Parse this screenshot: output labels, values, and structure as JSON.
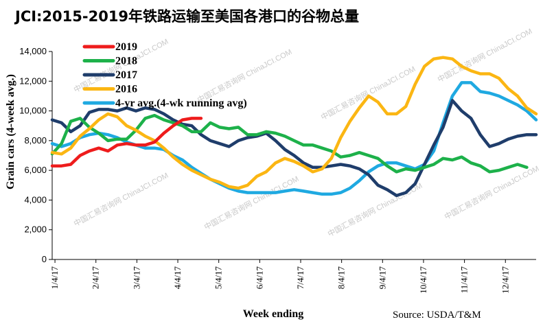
{
  "chart_data": {
    "type": "line",
    "title": "JCI:2015-2019年铁路运输至美国各港口的谷物总量",
    "ylabel": "Grain cars (4-week avg.)",
    "xlabel": "Week ending",
    "source": "Source: USDA/T&M",
    "watermark": "中国汇易咨询网 ChinaJCI.COM",
    "ylim": [
      0,
      14000
    ],
    "yticks": [
      0,
      2000,
      4000,
      6000,
      8000,
      10000,
      12000,
      14000
    ],
    "ytick_labels": [
      "0",
      "2,000",
      "4,000",
      "6,000",
      "8,000",
      "10,000",
      "12,000",
      "14,000"
    ],
    "x_domain": [
      0,
      52
    ],
    "xticks": [
      {
        "pos": 0.3,
        "label": "1/4/17"
      },
      {
        "pos": 4.7,
        "label": "2/4/17"
      },
      {
        "pos": 9.1,
        "label": "3/4/17"
      },
      {
        "pos": 13.5,
        "label": "4/4/17"
      },
      {
        "pos": 17.9,
        "label": "5/4/17"
      },
      {
        "pos": 22.3,
        "label": "6/4/17"
      },
      {
        "pos": 26.7,
        "label": "7/4/17"
      },
      {
        "pos": 31.1,
        "label": "8/4/17"
      },
      {
        "pos": 35.5,
        "label": "9/4/17"
      },
      {
        "pos": 39.9,
        "label": "10/4/17"
      },
      {
        "pos": 44.3,
        "label": "11/4/17"
      },
      {
        "pos": 48.7,
        "label": "12/4/17"
      }
    ],
    "series": [
      {
        "name": "2019",
        "color": "#ee1c1c",
        "x": [
          0,
          1,
          2,
          3,
          4,
          5,
          6,
          7,
          8,
          9,
          10,
          11,
          12,
          13,
          14,
          15,
          16
        ],
        "values": [
          6300,
          6300,
          6400,
          7000,
          7300,
          7500,
          7300,
          7700,
          7800,
          7700,
          7700,
          7900,
          8500,
          9000,
          9400,
          9500,
          9500
        ]
      },
      {
        "name": "2018",
        "color": "#1db14a",
        "x": [
          0,
          1,
          2,
          3,
          4,
          5,
          6,
          7,
          8,
          9,
          10,
          11,
          12,
          13,
          14,
          15,
          16,
          17,
          18,
          19,
          20,
          21,
          22,
          23,
          24,
          25,
          26,
          27,
          28,
          29,
          30,
          31,
          32,
          33,
          34,
          35,
          36,
          37,
          38,
          39,
          40,
          41,
          42,
          43,
          44,
          45,
          46,
          47,
          48,
          49,
          50,
          51
        ],
        "values": [
          7100,
          7800,
          9300,
          9500,
          8900,
          8500,
          8000,
          8100,
          8100,
          8700,
          9500,
          9700,
          9400,
          9200,
          9000,
          8600,
          8600,
          9200,
          8900,
          8800,
          8900,
          8400,
          8400,
          8600,
          8500,
          8300,
          8000,
          7700,
          7700,
          7500,
          7300,
          6900,
          7000,
          7200,
          7000,
          6800,
          6300,
          5900,
          6100,
          6000,
          6200,
          6400,
          6800,
          6700,
          6900,
          6500,
          6300,
          5900,
          6000,
          6200,
          6400,
          6200
        ]
      },
      {
        "name": "2017",
        "color": "#1f3d6b",
        "x": [
          0,
          1,
          2,
          3,
          4,
          5,
          6,
          7,
          8,
          9,
          10,
          11,
          12,
          13,
          14,
          15,
          16,
          17,
          18,
          19,
          20,
          21,
          22,
          23,
          24,
          25,
          26,
          27,
          28,
          29,
          30,
          31,
          32,
          33,
          34,
          35,
          36,
          37,
          38,
          39,
          40,
          41,
          42,
          43,
          44,
          45,
          46,
          47,
          48,
          49,
          50,
          51,
          52
        ],
        "values": [
          9400,
          9200,
          8600,
          9000,
          9900,
          10100,
          10100,
          10000,
          10200,
          10000,
          10200,
          10100,
          9800,
          9400,
          9100,
          9000,
          8400,
          8000,
          7800,
          7600,
          8000,
          8200,
          8300,
          8500,
          8000,
          7400,
          7000,
          6500,
          6200,
          6200,
          6300,
          6400,
          6300,
          6100,
          5700,
          5000,
          4700,
          4300,
          4500,
          5100,
          6400,
          7700,
          8900,
          10700,
          10000,
          9500,
          8400,
          7600,
          7800,
          8100,
          8300,
          8400,
          8400
        ]
      },
      {
        "name": "2016",
        "color": "#fbb613",
        "x": [
          0,
          1,
          2,
          3,
          4,
          5,
          6,
          7,
          8,
          9,
          10,
          11,
          12,
          13,
          14,
          15,
          16,
          17,
          18,
          19,
          20,
          21,
          22,
          23,
          24,
          25,
          26,
          27,
          28,
          29,
          30,
          31,
          32,
          33,
          34,
          35,
          36,
          37,
          38,
          39,
          40,
          41,
          42,
          43,
          44,
          45,
          46,
          47,
          48,
          49,
          50,
          51,
          52
        ],
        "values": [
          7200,
          7100,
          7500,
          8300,
          8800,
          9400,
          9800,
          9600,
          9000,
          8700,
          8300,
          8000,
          7500,
          6900,
          6400,
          6000,
          5700,
          5400,
          5200,
          4900,
          4800,
          5000,
          5600,
          5900,
          6500,
          6800,
          6600,
          6300,
          5900,
          6100,
          6800,
          8200,
          9300,
          10200,
          11000,
          10600,
          9800,
          9800,
          10300,
          11800,
          13000,
          13500,
          13600,
          13500,
          13000,
          12700,
          12500,
          12500,
          12200,
          11500,
          11000,
          10200,
          9800
        ]
      },
      {
        "name": "4-yr avg.(4-wk running avg)",
        "color": "#1fa9e1",
        "x": [
          0,
          1,
          2,
          3,
          4,
          5,
          6,
          7,
          8,
          9,
          10,
          11,
          12,
          13,
          14,
          15,
          16,
          17,
          18,
          19,
          20,
          21,
          22,
          23,
          24,
          25,
          26,
          27,
          28,
          29,
          30,
          31,
          32,
          33,
          34,
          35,
          36,
          37,
          38,
          39,
          40,
          41,
          42,
          43,
          44,
          45,
          46,
          47,
          48,
          49,
          50,
          51,
          52
        ],
        "values": [
          7800,
          7600,
          7800,
          8200,
          8400,
          8500,
          8400,
          8200,
          7900,
          7700,
          7500,
          7500,
          7400,
          7000,
          6700,
          6200,
          5800,
          5400,
          5100,
          4800,
          4600,
          4500,
          4500,
          4500,
          4500,
          4600,
          4700,
          4600,
          4500,
          4400,
          4400,
          4500,
          4800,
          5300,
          5900,
          6300,
          6500,
          6500,
          6300,
          6100,
          6400,
          7300,
          9200,
          11000,
          11900,
          11900,
          11300,
          11200,
          11000,
          10700,
          10400,
          10000,
          9400
        ]
      }
    ]
  }
}
